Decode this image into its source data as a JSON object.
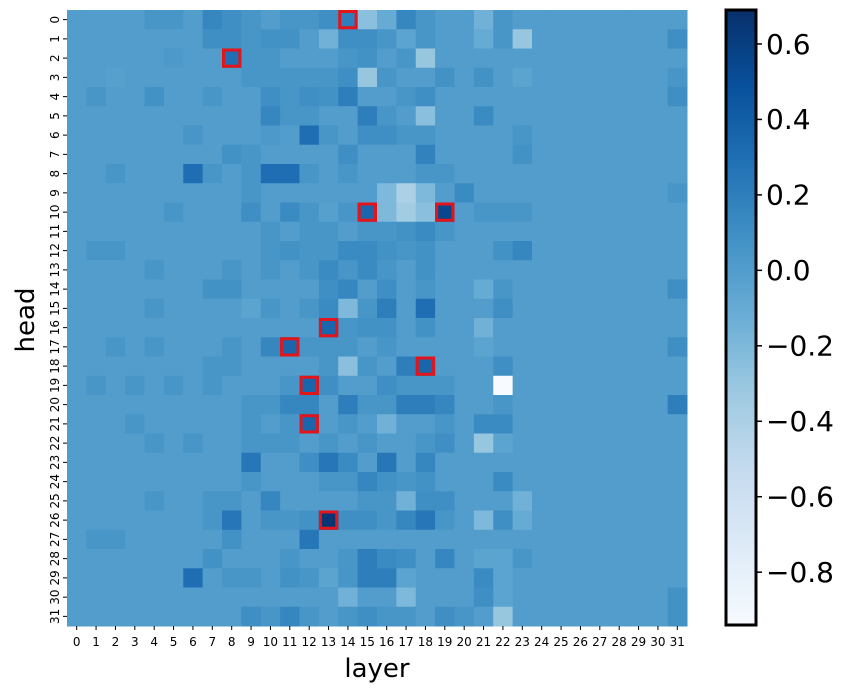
{
  "chart_data": {
    "type": "heatmap",
    "xlabel": "layer",
    "ylabel": "head",
    "x_ticks": [
      "0",
      "1",
      "2",
      "3",
      "4",
      "5",
      "6",
      "7",
      "8",
      "9",
      "10",
      "11",
      "12",
      "13",
      "14",
      "15",
      "16",
      "17",
      "18",
      "19",
      "20",
      "21",
      "22",
      "23",
      "24",
      "25",
      "26",
      "27",
      "28",
      "29",
      "30",
      "31"
    ],
    "y_ticks": [
      "0",
      "1",
      "2",
      "3",
      "4",
      "5",
      "6",
      "7",
      "8",
      "9",
      "10",
      "11",
      "12",
      "13",
      "14",
      "15",
      "16",
      "17",
      "18",
      "19",
      "20",
      "21",
      "22",
      "23",
      "24",
      "25",
      "26",
      "27",
      "28",
      "29",
      "30",
      "31"
    ],
    "colorbar": {
      "range": [
        -0.94,
        0.69
      ],
      "ticks": [
        "0.6",
        "0.4",
        "0.2",
        "0.0",
        "−0.2",
        "−0.4",
        "−0.6",
        "−0.8"
      ],
      "tick_values": [
        0.6,
        0.4,
        0.2,
        0.0,
        -0.2,
        -0.4,
        -0.6,
        -0.8
      ],
      "colormap": "Blues"
    },
    "values": [
      [
        0.0,
        0.0,
        0.0,
        0.0,
        0.05,
        0.05,
        0.0,
        0.15,
        0.1,
        0.05,
        0.0,
        0.05,
        0.05,
        0.1,
        0.2,
        -0.25,
        -0.1,
        0.15,
        0.05,
        0.0,
        0.0,
        -0.15,
        0.05,
        0.0,
        0.0,
        0.0,
        0.0,
        0.0,
        0.0,
        0.0,
        0.0,
        0.0
      ],
      [
        0.0,
        0.0,
        0.0,
        0.0,
        0.0,
        0.0,
        0.0,
        0.1,
        0.1,
        0.05,
        0.08,
        0.08,
        0.0,
        -0.15,
        0.1,
        0.1,
        0.05,
        -0.05,
        0.05,
        0.0,
        0.0,
        -0.1,
        0.05,
        -0.3,
        0.0,
        0.0,
        0.0,
        0.0,
        0.0,
        0.0,
        0.0,
        0.1
      ],
      [
        0.0,
        0.0,
        0.0,
        0.0,
        0.0,
        0.03,
        0.0,
        0.0,
        0.3,
        0.05,
        0.05,
        0.0,
        0.0,
        0.0,
        0.05,
        0.08,
        0.0,
        0.05,
        -0.3,
        0.0,
        0.0,
        0.0,
        0.0,
        0.0,
        0.0,
        0.0,
        0.0,
        0.0,
        0.0,
        0.0,
        0.0,
        0.0
      ],
      [
        0.0,
        0.0,
        -0.02,
        0.0,
        0.0,
        0.0,
        0.0,
        0.0,
        0.0,
        0.05,
        0.05,
        0.05,
        0.05,
        0.05,
        0.1,
        -0.3,
        0.05,
        0.0,
        0.0,
        0.08,
        0.0,
        0.08,
        0.0,
        -0.05,
        0.0,
        0.0,
        0.0,
        0.0,
        0.0,
        0.0,
        0.0,
        0.05
      ],
      [
        0.0,
        0.05,
        0.0,
        0.0,
        0.08,
        0.0,
        0.0,
        0.05,
        0.0,
        0.0,
        0.1,
        0.05,
        0.1,
        0.08,
        0.2,
        0.0,
        0.0,
        0.05,
        0.1,
        0.0,
        0.0,
        0.0,
        0.0,
        0.0,
        0.0,
        0.0,
        0.0,
        0.0,
        0.0,
        0.0,
        0.0,
        0.1
      ],
      [
        0.0,
        0.0,
        0.0,
        0.0,
        0.0,
        0.0,
        0.0,
        0.0,
        0.0,
        0.0,
        0.15,
        0.05,
        0.05,
        0.0,
        0.0,
        0.2,
        0.05,
        0.0,
        -0.25,
        0.0,
        0.0,
        0.12,
        0.0,
        0.0,
        0.0,
        0.0,
        0.0,
        0.0,
        0.0,
        0.0,
        0.0,
        0.0
      ],
      [
        0.0,
        0.0,
        0.0,
        0.0,
        0.0,
        0.0,
        0.05,
        0.0,
        0.0,
        0.0,
        0.03,
        0.0,
        0.3,
        0.05,
        0.0,
        0.1,
        0.1,
        0.05,
        0.05,
        0.0,
        0.0,
        0.0,
        0.0,
        0.05,
        0.0,
        0.0,
        0.0,
        0.0,
        0.0,
        0.0,
        0.0,
        0.0
      ],
      [
        0.0,
        0.0,
        0.0,
        0.0,
        0.0,
        0.0,
        0.0,
        0.0,
        0.08,
        0.05,
        0.0,
        0.0,
        0.0,
        0.0,
        0.1,
        0.0,
        0.0,
        0.0,
        0.18,
        0.0,
        0.0,
        0.0,
        0.0,
        0.08,
        0.0,
        0.0,
        0.0,
        0.0,
        0.0,
        0.0,
        0.0,
        0.0
      ],
      [
        0.0,
        0.0,
        0.05,
        0.0,
        0.0,
        0.0,
        0.3,
        0.05,
        0.0,
        0.05,
        0.3,
        0.3,
        0.05,
        0.0,
        0.05,
        0.0,
        0.0,
        0.0,
        0.05,
        0.05,
        0.0,
        0.0,
        0.0,
        0.0,
        0.0,
        0.0,
        0.0,
        0.0,
        0.0,
        0.0,
        0.0,
        0.0
      ],
      [
        0.0,
        0.0,
        0.0,
        0.0,
        0.0,
        0.0,
        0.0,
        0.0,
        0.0,
        0.05,
        0.0,
        0.0,
        0.0,
        0.0,
        0.0,
        0.0,
        -0.2,
        -0.4,
        -0.2,
        0.0,
        0.12,
        0.0,
        0.0,
        0.0,
        0.0,
        0.0,
        0.0,
        0.0,
        0.0,
        0.0,
        0.0,
        0.05
      ],
      [
        0.0,
        0.0,
        0.0,
        0.0,
        0.0,
        0.05,
        0.0,
        0.0,
        0.0,
        0.1,
        0.0,
        0.12,
        0.05,
        -0.02,
        0.05,
        0.35,
        -0.2,
        -0.35,
        -0.25,
        0.55,
        0.0,
        0.05,
        0.05,
        0.05,
        0.0,
        0.0,
        0.0,
        0.0,
        0.0,
        0.0,
        0.0,
        0.0
      ],
      [
        0.0,
        0.0,
        0.0,
        0.0,
        0.0,
        0.0,
        0.0,
        0.0,
        0.0,
        0.0,
        0.05,
        0.0,
        0.05,
        0.05,
        0.0,
        0.05,
        0.05,
        0.08,
        0.12,
        0.05,
        0.0,
        0.0,
        0.0,
        0.0,
        0.0,
        0.0,
        0.0,
        0.0,
        0.0,
        0.0,
        0.0,
        0.0
      ],
      [
        0.0,
        0.05,
        0.05,
        0.0,
        0.0,
        0.0,
        0.0,
        0.0,
        0.0,
        0.0,
        0.05,
        0.08,
        0.05,
        0.05,
        0.12,
        0.12,
        0.08,
        0.05,
        0.08,
        0.0,
        0.0,
        0.0,
        0.08,
        0.15,
        0.0,
        0.0,
        0.0,
        0.0,
        0.0,
        0.0,
        0.0,
        0.0
      ],
      [
        0.0,
        0.0,
        0.0,
        0.0,
        0.05,
        0.0,
        0.0,
        0.0,
        0.05,
        0.0,
        0.05,
        0.0,
        0.05,
        0.12,
        0.05,
        0.12,
        0.05,
        0.0,
        0.08,
        0.0,
        0.0,
        0.0,
        0.0,
        0.0,
        0.0,
        0.0,
        0.0,
        0.0,
        0.0,
        0.0,
        0.0,
        0.0
      ],
      [
        0.0,
        0.0,
        0.0,
        0.0,
        0.0,
        0.0,
        0.0,
        0.08,
        0.08,
        0.0,
        0.0,
        0.0,
        0.0,
        0.1,
        0.15,
        0.0,
        0.1,
        0.0,
        0.05,
        0.0,
        0.0,
        -0.1,
        0.05,
        0.0,
        0.0,
        0.0,
        0.0,
        0.0,
        0.0,
        0.0,
        0.0,
        0.1
      ],
      [
        0.0,
        0.0,
        0.0,
        0.0,
        0.05,
        0.0,
        0.0,
        0.0,
        0.0,
        -0.05,
        0.05,
        0.0,
        0.05,
        0.12,
        -0.2,
        0.05,
        0.2,
        0.0,
        0.3,
        0.0,
        0.0,
        0.0,
        0.1,
        0.0,
        0.0,
        0.0,
        0.0,
        0.0,
        0.0,
        0.0,
        0.0,
        0.0
      ],
      [
        0.0,
        0.0,
        0.0,
        0.0,
        0.0,
        0.0,
        0.0,
        0.0,
        0.0,
        0.0,
        0.0,
        0.0,
        0.0,
        0.35,
        0.05,
        0.08,
        0.08,
        0.0,
        0.08,
        0.0,
        0.0,
        -0.15,
        0.0,
        0.0,
        0.0,
        0.0,
        0.0,
        0.0,
        0.0,
        0.0,
        0.0,
        0.0
      ],
      [
        0.0,
        0.0,
        0.05,
        0.0,
        0.05,
        0.0,
        0.0,
        0.0,
        0.05,
        0.0,
        0.15,
        0.35,
        0.05,
        0.05,
        0.05,
        0.0,
        0.05,
        0.0,
        0.0,
        0.0,
        0.0,
        -0.05,
        0.0,
        0.0,
        0.0,
        0.0,
        0.0,
        0.0,
        0.0,
        0.0,
        0.0,
        0.1
      ],
      [
        0.0,
        0.0,
        0.0,
        0.0,
        0.0,
        0.0,
        0.0,
        0.05,
        0.05,
        0.0,
        0.0,
        0.0,
        0.0,
        0.05,
        -0.25,
        0.05,
        0.0,
        0.2,
        0.35,
        0.0,
        0.0,
        0.0,
        0.1,
        0.0,
        0.0,
        0.0,
        0.0,
        0.0,
        0.0,
        0.0,
        0.0,
        0.0
      ],
      [
        0.0,
        0.05,
        0.0,
        0.05,
        0.0,
        0.05,
        0.0,
        0.05,
        0.0,
        0.0,
        0.0,
        0.05,
        0.35,
        0.1,
        0.0,
        0.0,
        0.1,
        0.05,
        0.05,
        0.05,
        0.0,
        0.0,
        -0.94,
        0.0,
        0.0,
        0.0,
        0.0,
        0.0,
        0.0,
        0.0,
        0.0,
        0.0
      ],
      [
        0.0,
        0.0,
        0.0,
        0.0,
        0.0,
        0.0,
        0.0,
        0.0,
        0.0,
        0.05,
        0.05,
        0.15,
        0.15,
        0.0,
        0.2,
        0.05,
        0.05,
        0.2,
        0.2,
        0.15,
        0.0,
        0.0,
        0.05,
        0.0,
        0.0,
        0.0,
        0.0,
        0.0,
        0.0,
        0.0,
        0.0,
        0.2
      ],
      [
        0.0,
        0.0,
        0.0,
        0.05,
        0.0,
        0.0,
        0.0,
        0.0,
        0.0,
        0.05,
        0.0,
        0.05,
        0.35,
        0.0,
        0.05,
        0.0,
        -0.15,
        0.0,
        0.0,
        0.05,
        0.0,
        0.12,
        0.12,
        0.0,
        0.0,
        0.0,
        0.0,
        0.0,
        0.0,
        0.0,
        0.0,
        0.0
      ],
      [
        0.0,
        0.0,
        0.0,
        0.0,
        0.05,
        0.0,
        0.05,
        0.0,
        0.0,
        0.05,
        0.05,
        0.05,
        0.0,
        0.05,
        0.0,
        0.05,
        0.0,
        0.0,
        0.05,
        0.1,
        0.0,
        -0.3,
        -0.05,
        0.0,
        0.0,
        0.0,
        0.0,
        0.0,
        0.0,
        0.0,
        0.0,
        0.0
      ],
      [
        0.0,
        0.0,
        0.0,
        0.0,
        0.0,
        0.0,
        0.0,
        0.0,
        0.0,
        0.25,
        0.0,
        0.0,
        0.1,
        0.25,
        0.12,
        0.0,
        0.25,
        0.0,
        0.15,
        0.0,
        0.0,
        0.0,
        0.0,
        0.0,
        0.0,
        0.0,
        0.0,
        0.0,
        0.0,
        0.0,
        0.0,
        0.0
      ],
      [
        0.0,
        0.0,
        0.0,
        0.0,
        0.0,
        0.0,
        0.0,
        0.0,
        0.0,
        0.05,
        0.0,
        0.0,
        0.0,
        0.05,
        0.05,
        0.15,
        0.08,
        0.05,
        0.08,
        0.0,
        0.0,
        0.0,
        0.12,
        0.0,
        0.0,
        0.0,
        0.0,
        0.0,
        0.0,
        0.0,
        0.0,
        0.0
      ],
      [
        0.0,
        0.0,
        0.0,
        0.0,
        0.05,
        0.0,
        0.0,
        0.05,
        0.05,
        0.0,
        0.15,
        0.0,
        0.0,
        0.0,
        0.0,
        0.05,
        0.05,
        -0.15,
        0.1,
        0.1,
        0.0,
        0.0,
        0.0,
        -0.15,
        0.0,
        0.0,
        0.0,
        0.0,
        0.0,
        0.0,
        0.0,
        0.0
      ],
      [
        0.0,
        0.0,
        0.0,
        0.0,
        0.0,
        0.0,
        0.0,
        0.05,
        0.25,
        0.0,
        0.05,
        0.05,
        0.08,
        0.65,
        0.1,
        0.1,
        0.05,
        0.15,
        0.25,
        0.05,
        0.0,
        -0.2,
        0.1,
        -0.1,
        0.0,
        0.0,
        0.0,
        0.0,
        0.0,
        0.0,
        0.0,
        0.0
      ],
      [
        0.0,
        0.05,
        0.05,
        0.0,
        0.0,
        0.0,
        0.0,
        0.0,
        0.08,
        0.0,
        0.0,
        0.0,
        0.25,
        0.0,
        0.0,
        0.0,
        0.0,
        0.0,
        0.0,
        0.0,
        0.0,
        0.0,
        0.0,
        0.0,
        0.0,
        0.0,
        0.0,
        0.0,
        0.0,
        0.0,
        0.0,
        0.0
      ],
      [
        0.0,
        0.0,
        0.0,
        0.0,
        0.0,
        0.0,
        0.0,
        0.08,
        0.0,
        0.0,
        0.0,
        0.05,
        0.0,
        0.0,
        0.05,
        0.2,
        0.12,
        0.1,
        0.0,
        0.15,
        0.0,
        -0.05,
        -0.05,
        0.05,
        0.0,
        0.0,
        0.0,
        0.0,
        0.0,
        0.0,
        0.0,
        0.0
      ],
      [
        0.0,
        0.0,
        0.0,
        0.0,
        0.0,
        0.0,
        0.3,
        0.0,
        0.05,
        0.05,
        0.0,
        0.08,
        0.05,
        -0.05,
        0.05,
        0.2,
        0.2,
        -0.05,
        0.0,
        0.0,
        0.0,
        0.12,
        -0.05,
        0.0,
        0.0,
        0.0,
        0.0,
        0.0,
        0.0,
        0.0,
        0.0,
        0.0
      ],
      [
        0.0,
        0.0,
        0.0,
        0.0,
        0.0,
        0.0,
        0.0,
        0.0,
        0.0,
        0.0,
        0.0,
        0.0,
        0.0,
        0.0,
        -0.15,
        0.0,
        0.0,
        -0.2,
        0.0,
        0.0,
        0.0,
        0.1,
        -0.05,
        0.0,
        0.0,
        0.0,
        0.0,
        0.0,
        0.0,
        0.0,
        0.0,
        0.08
      ],
      [
        0.0,
        0.0,
        0.0,
        0.0,
        0.0,
        0.0,
        0.0,
        0.0,
        0.0,
        0.1,
        0.05,
        0.15,
        0.05,
        0.0,
        0.05,
        0.1,
        0.05,
        0.05,
        0.0,
        0.1,
        0.05,
        0.0,
        -0.3,
        0.0,
        0.0,
        0.0,
        0.0,
        0.0,
        0.0,
        0.0,
        0.0,
        0.08
      ]
    ],
    "highlights": [
      {
        "layer": 14,
        "head": 0
      },
      {
        "layer": 8,
        "head": 2
      },
      {
        "layer": 15,
        "head": 10
      },
      {
        "layer": 19,
        "head": 10
      },
      {
        "layer": 13,
        "head": 16
      },
      {
        "layer": 11,
        "head": 17
      },
      {
        "layer": 18,
        "head": 18
      },
      {
        "layer": 12,
        "head": 19
      },
      {
        "layer": 12,
        "head": 21
      },
      {
        "layer": 13,
        "head": 26
      }
    ],
    "highlight_color": "#e3141a"
  }
}
